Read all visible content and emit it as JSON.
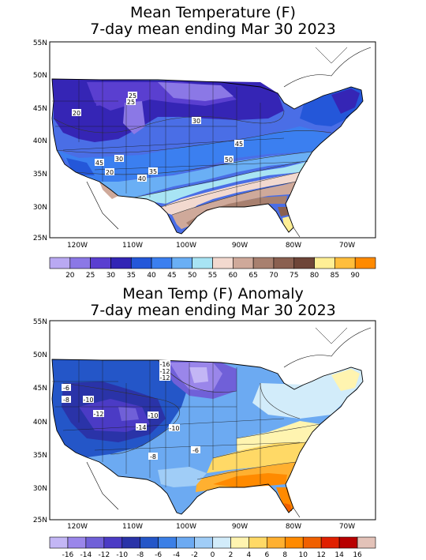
{
  "map1": {
    "title_line1": "Mean Temperature (F)",
    "title_line2": "7-day mean ending Mar 30 2023",
    "lat_ticks": [
      "55N",
      "50N",
      "45N",
      "40N",
      "35N",
      "30N",
      "25N"
    ],
    "lon_ticks": [
      "120W",
      "110W",
      "100W",
      "90W",
      "80W",
      "70W"
    ],
    "contour_labels": [
      "25",
      "25",
      "20",
      "30",
      "45",
      "50",
      "30",
      "45",
      "20",
      "35",
      "40"
    ],
    "legend_colors": [
      "#b9a9f2",
      "#8b78e6",
      "#5a3fd0",
      "#3225b5",
      "#2457d9",
      "#3b7ff0",
      "#6aaff5",
      "#a8e4f4",
      "#f2d9cf",
      "#cfa99a",
      "#a8806f",
      "#8a6050",
      "#6e4538",
      "#ffef95",
      "#ffbe3c",
      "#ff8a00",
      "#f04a00",
      "#b80000"
    ],
    "legend_labels": [
      "20",
      "25",
      "30",
      "35",
      "40",
      "45",
      "50",
      "55",
      "60",
      "65",
      "70",
      "75",
      "80",
      "85",
      "90"
    ]
  },
  "map2": {
    "title_line1": "Mean Temp (F) Anomaly",
    "title_line2": "7-day mean ending Mar 30 2023",
    "lat_ticks": [
      "55N",
      "50N",
      "45N",
      "40N",
      "35N",
      "30N",
      "25N"
    ],
    "lon_ticks": [
      "120W",
      "110W",
      "100W",
      "90W",
      "80W",
      "70W"
    ],
    "contour_labels": [
      "-16",
      "-12",
      "-6",
      "-8",
      "-10",
      "-12",
      "-10",
      "-14",
      "-10",
      "-8",
      "-6",
      "-12"
    ],
    "legend_colors": [
      "#c3b6f5",
      "#9a86ea",
      "#7060d8",
      "#4b3bc5",
      "#2a33a8",
      "#2456c8",
      "#3b7fe6",
      "#6caaf2",
      "#a0cdf7",
      "#d2ecfa",
      "#fff4b0",
      "#ffd966",
      "#ffb030",
      "#ff8a00",
      "#f06000",
      "#e02000",
      "#b80000",
      "#e3c2b8",
      "#b98f80",
      "#8a6050"
    ],
    "legend_labels": [
      "-16",
      "-14",
      "-12",
      "-10",
      "-8",
      "-6",
      "-4",
      "-2",
      "0",
      "2",
      "4",
      "6",
      "8",
      "10",
      "12",
      "14",
      "16"
    ]
  }
}
